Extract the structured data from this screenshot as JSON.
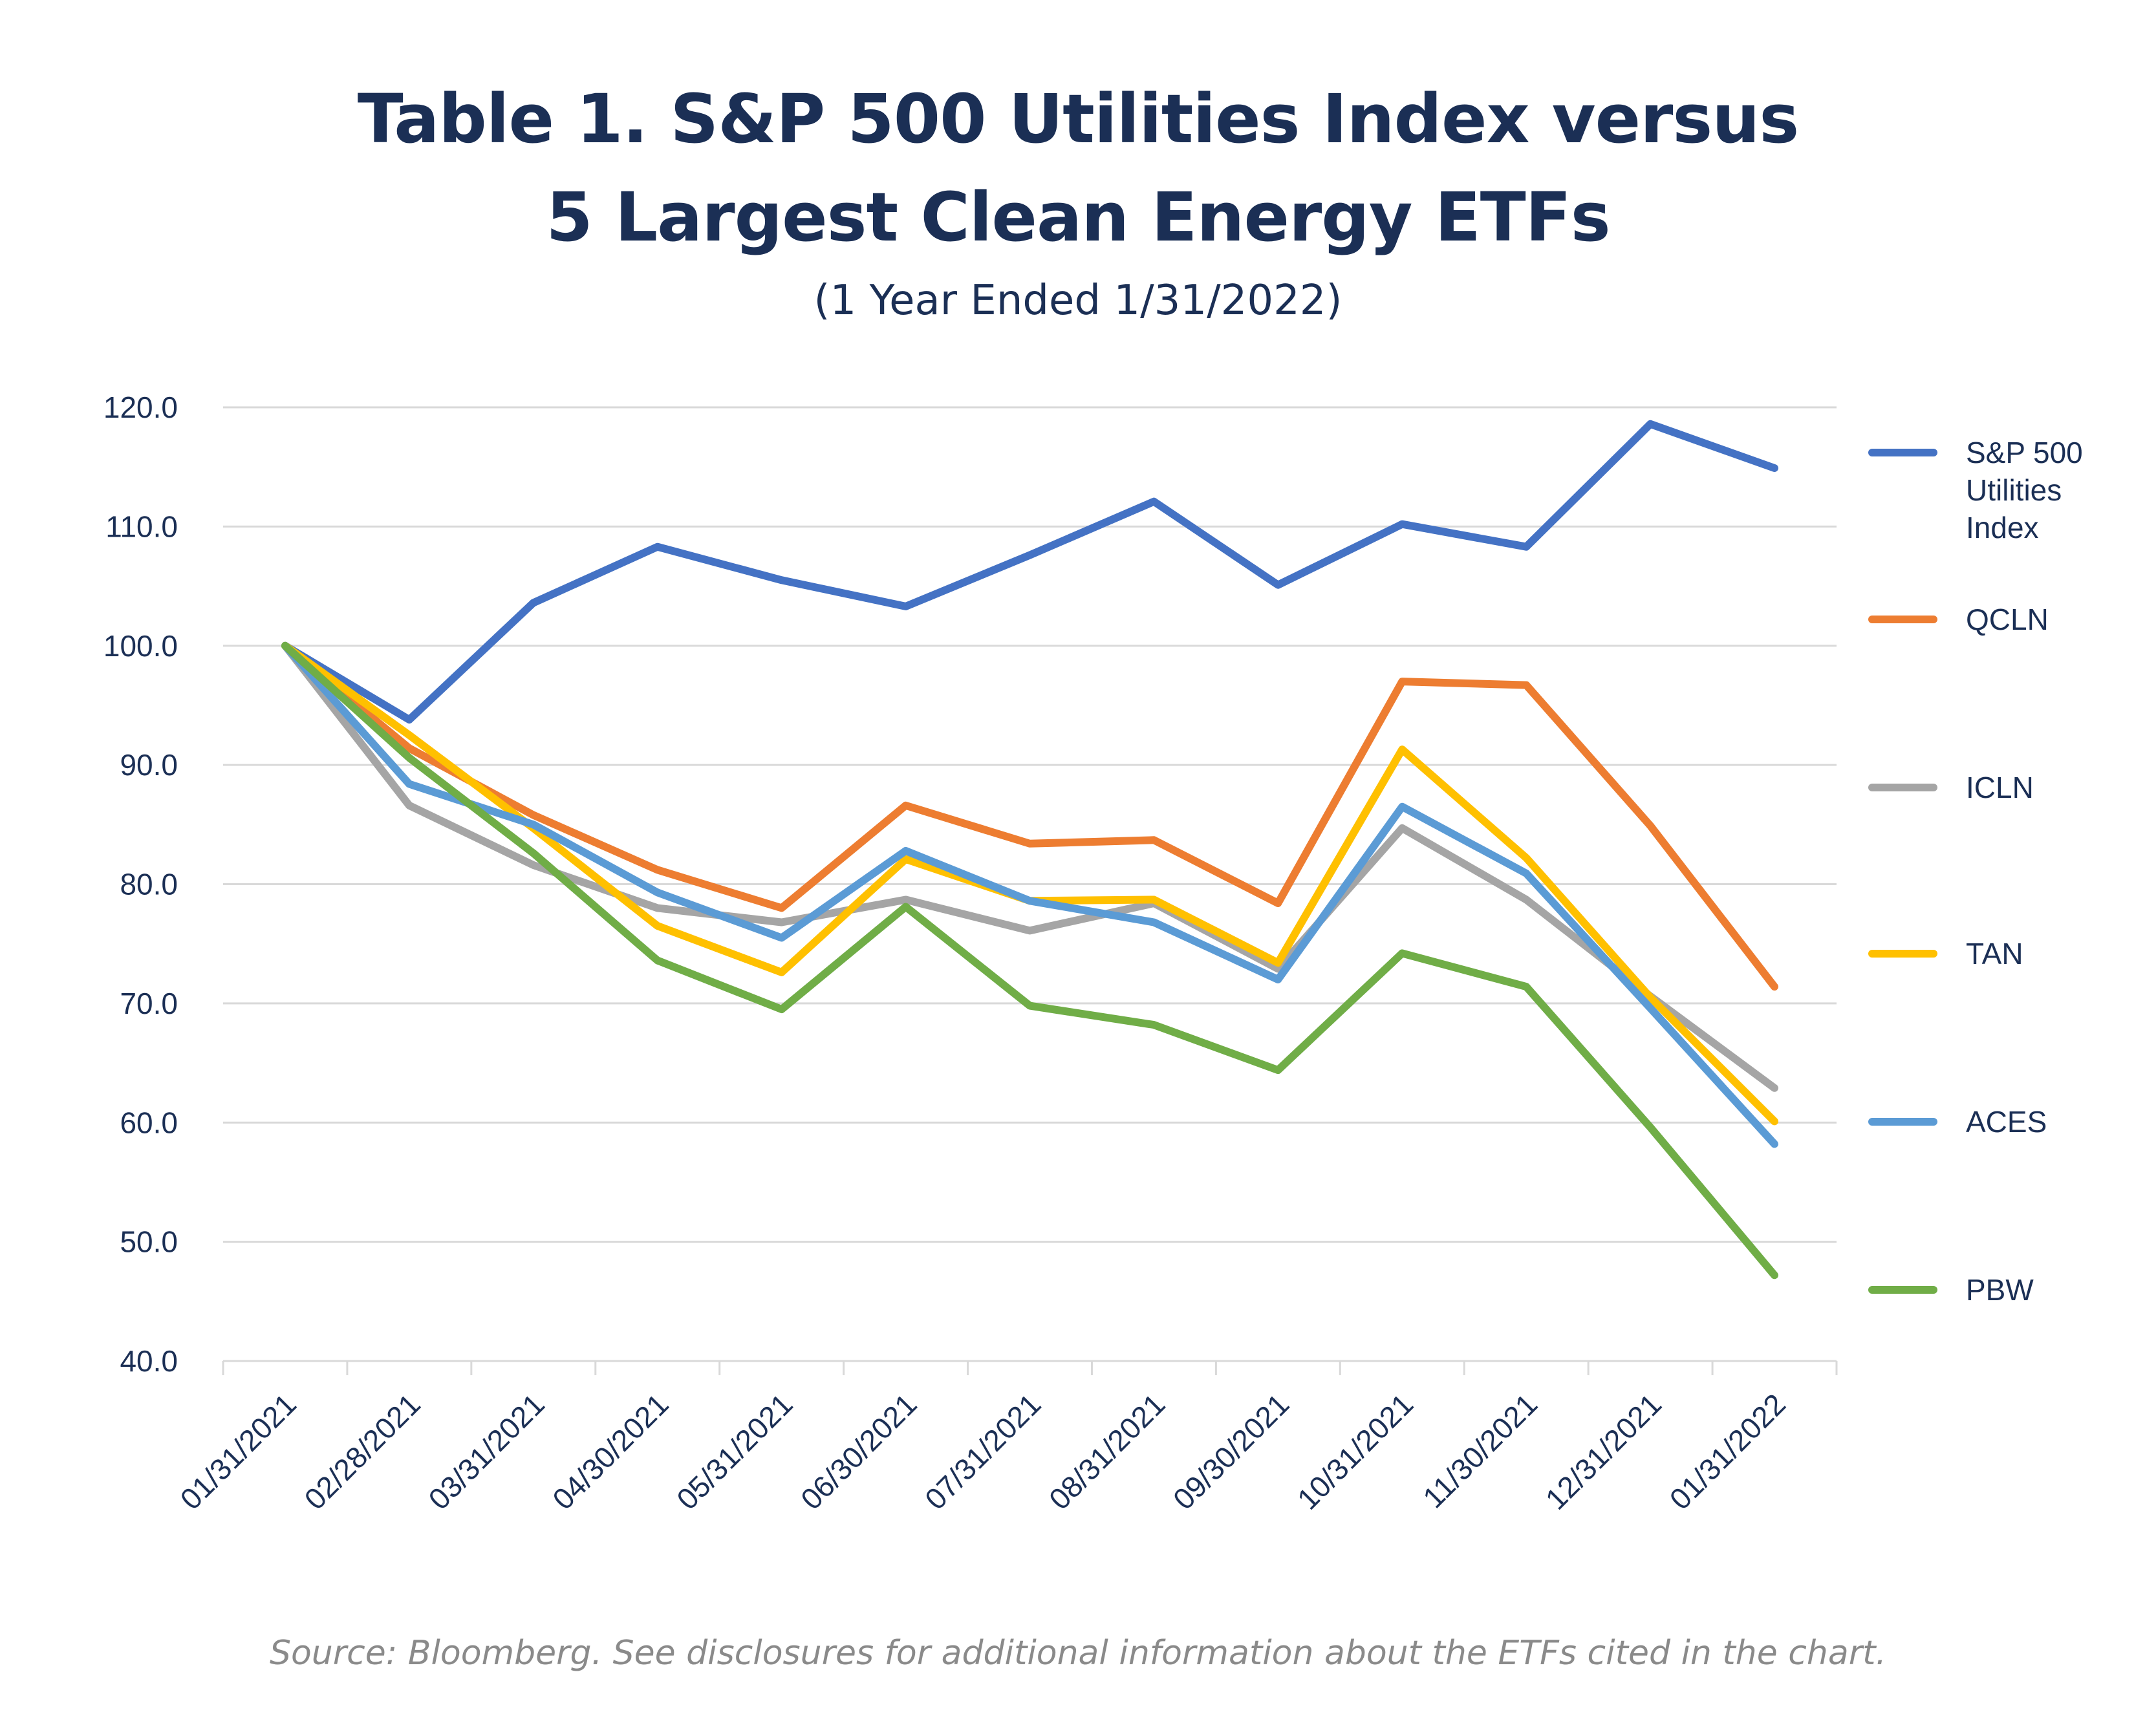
{
  "title": {
    "line1": "Table 1. S&P 500 Utilities Index versus",
    "line2": "5 Largest Clean Energy ETFs"
  },
  "subtitle": "(1 Year Ended 1/31/2022)",
  "source": "Source: Bloomberg. See disclosures for additional information about the ETFs cited in the chart.",
  "chart_data": {
    "type": "line",
    "title": "Table 1. S&P 500 Utilities Index versus 5 Largest Clean Energy ETFs",
    "subtitle": "(1 Year Ended 1/31/2022)",
    "xlabel": "",
    "ylabel": "",
    "ylim": [
      40,
      120
    ],
    "yticks": [
      "40.0",
      "50.0",
      "60.0",
      "70.0",
      "80.0",
      "90.0",
      "100.0",
      "110.0",
      "120.0"
    ],
    "grid": "horizontal",
    "legend_position": "right",
    "x": [
      "01/31/2021",
      "02/28/2021",
      "03/31/2021",
      "04/30/2021",
      "05/31/2021",
      "06/30/2021",
      "07/31/2021",
      "08/31/2021",
      "09/30/2021",
      "10/31/2021",
      "11/30/2021",
      "12/31/2021",
      "01/31/2022"
    ],
    "series": [
      {
        "name": "S&P 500 Utilities Index",
        "legend_lines": [
          "S&P 500",
          "Utilities",
          "Index"
        ],
        "color": "#4472c4",
        "values": [
          100.0,
          93.8,
          103.6,
          108.3,
          105.5,
          103.3,
          107.6,
          112.1,
          105.1,
          110.2,
          108.3,
          118.6,
          114.9
        ]
      },
      {
        "name": "QCLN",
        "legend_lines": [
          "QCLN"
        ],
        "color": "#ed7d31",
        "values": [
          100.0,
          91.4,
          85.8,
          81.2,
          78.0,
          86.6,
          83.4,
          83.7,
          78.4,
          97.0,
          96.7,
          84.9,
          71.4
        ]
      },
      {
        "name": "ICLN",
        "legend_lines": [
          "ICLN"
        ],
        "color": "#a5a5a5",
        "values": [
          100.0,
          86.6,
          81.6,
          78.0,
          76.8,
          78.7,
          76.1,
          78.4,
          72.9,
          84.7,
          78.7,
          70.6,
          62.9
        ]
      },
      {
        "name": "TAN",
        "legend_lines": [
          "TAN"
        ],
        "color": "#ffc000",
        "values": [
          100.0,
          92.5,
          84.7,
          76.5,
          72.6,
          82.1,
          78.6,
          78.7,
          73.4,
          91.3,
          82.2,
          70.5,
          60.1
        ]
      },
      {
        "name": "ACES",
        "legend_lines": [
          "ACES"
        ],
        "color": "#5b9bd5",
        "values": [
          100.0,
          88.4,
          85.0,
          79.3,
          75.5,
          82.8,
          78.6,
          76.8,
          72.0,
          86.5,
          80.9,
          69.6,
          58.2
        ]
      },
      {
        "name": "PBW",
        "legend_lines": [
          "PBW"
        ],
        "color": "#70ad47",
        "values": [
          100.0,
          90.6,
          82.6,
          73.6,
          69.5,
          78.1,
          69.8,
          68.2,
          64.4,
          74.2,
          71.4,
          59.6,
          47.2
        ]
      }
    ]
  }
}
